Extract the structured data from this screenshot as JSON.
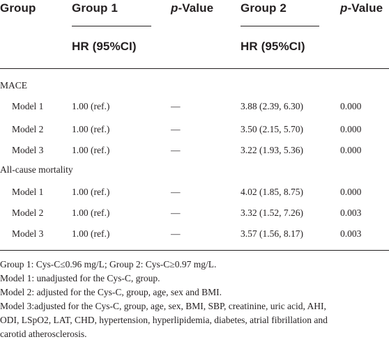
{
  "header": {
    "group": "Group",
    "group1": "Group 1",
    "pvalue1_prefix": "p",
    "pvalue1_suffix": "-Value",
    "group2": "Group 2",
    "pvalue2_prefix": "p",
    "pvalue2_suffix": "-Value",
    "hr1": "HR (95%CI)",
    "hr2": "HR (95%CI)"
  },
  "sections": [
    {
      "title": "MACE",
      "rows": [
        {
          "model": "Model 1",
          "g1": "1.00 (ref.)",
          "p1": "—",
          "g2": "3.88 (2.39, 6.30)",
          "p2": "0.000"
        },
        {
          "model": "Model 2",
          "g1": "1.00 (ref.)",
          "p1": "—",
          "g2": "3.50 (2.15, 5.70)",
          "p2": "0.000"
        },
        {
          "model": "Model 3",
          "g1": "1.00 (ref.)",
          "p1": "—",
          "g2": "3.22 (1.93, 5.36)",
          "p2": "0.000"
        }
      ]
    },
    {
      "title": "All-cause mortality",
      "rows": [
        {
          "model": "Model 1",
          "g1": "1.00 (ref.)",
          "p1": "—",
          "g2": "4.02 (1.85, 8.75)",
          "p2": "0.000"
        },
        {
          "model": "Model 2",
          "g1": "1.00 (ref.)",
          "p1": "—",
          "g2": "3.32 (1.52, 7.26)",
          "p2": "0.003"
        },
        {
          "model": "Model 3",
          "g1": "1.00 (ref.)",
          "p1": "—",
          "g2": "3.57 (1.56, 8.17)",
          "p2": "0.003"
        }
      ]
    }
  ],
  "footnotes": [
    "Group 1: Cys-C≤0.96 mg/L; Group 2: Cys-C≥0.97 mg/L.",
    "Model 1: unadjusted for the Cys-C, group.",
    "Model 2: adjusted for the Cys-C, group, age, sex and BMI.",
    "Model 3:adjusted for the Cys-C, group, age, sex, BMI, SBP, creatinine, uric acid, AHI,",
    "ODI, LSpO2, LAT, CHD, hypertension, hyperlipidemia, diabetes, atrial fibrillation and",
    "carotid atherosclerosis."
  ]
}
